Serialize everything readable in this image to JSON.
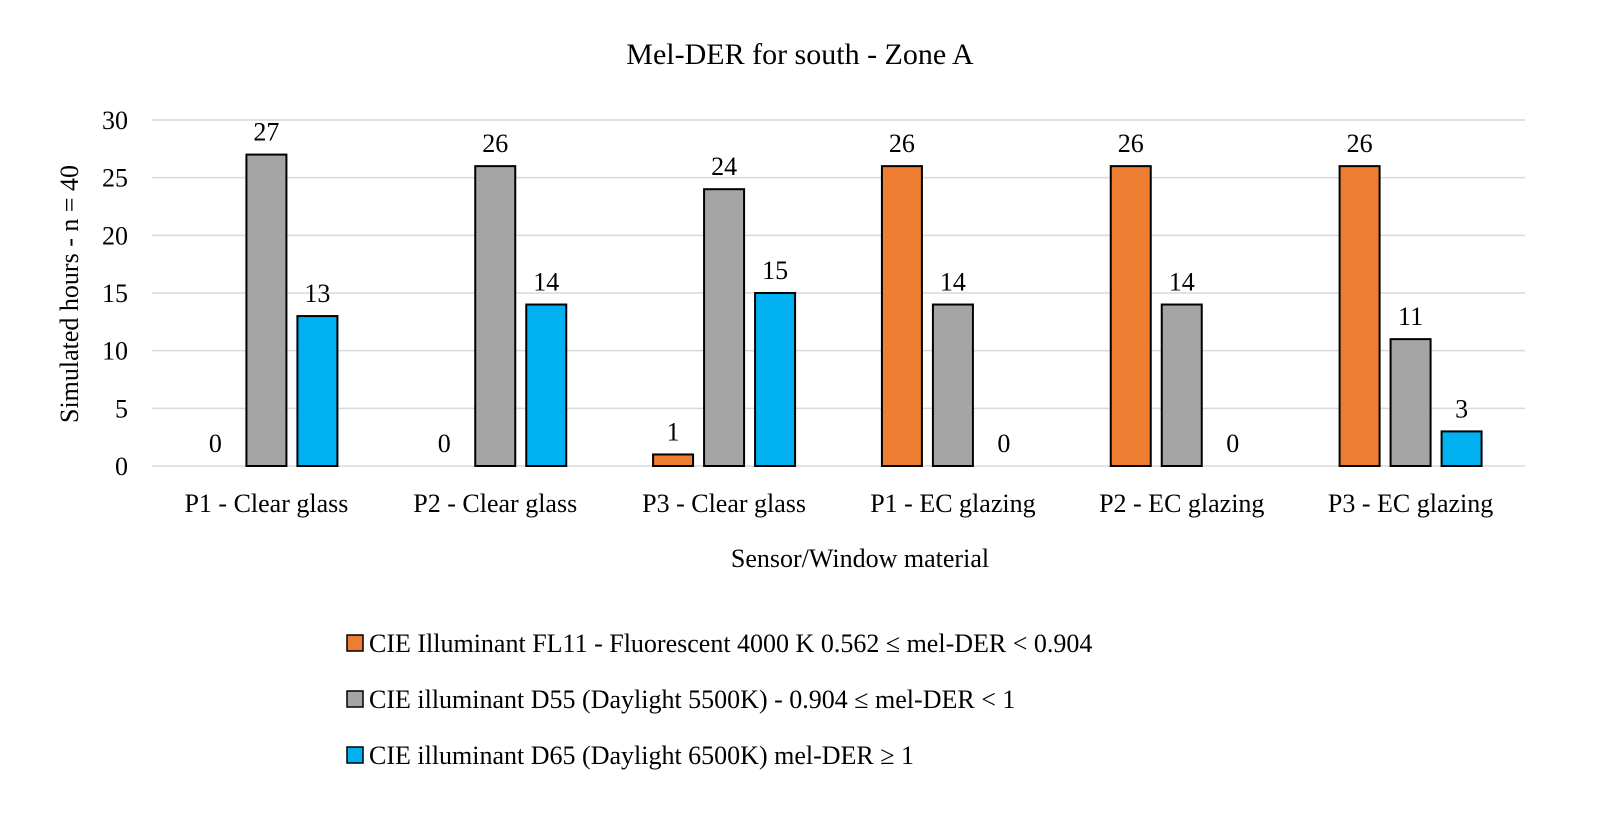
{
  "chart_data": {
    "type": "bar",
    "title": "Mel-DER for south - Zone A",
    "xlabel": "Sensor/Window material",
    "ylabel": "Simulated hours - n = 40",
    "ylim": [
      0,
      30
    ],
    "yticks": [
      "0",
      "5",
      "10",
      "15",
      "20",
      "25",
      "30"
    ],
    "grid": true,
    "legend_position": "bottom",
    "categories": [
      "P1 - Clear glass",
      "P2 - Clear glass",
      "P3 - Clear glass",
      "P1 - EC glazing",
      "P2 - EC glazing",
      "P3 - EC glazing"
    ],
    "series": [
      {
        "name": "CIE Illuminant FL11 - Fluorescent 4000 K 0.562 ≤ mel-DER  < 0.904",
        "color": "#ed7d31",
        "values": [
          0,
          0,
          1,
          26,
          26,
          26
        ]
      },
      {
        "name": "CIE illuminant D55 (Daylight 5500K) - 0.904 ≤ mel-DER  < 1",
        "color": "#a5a5a5",
        "values": [
          27,
          26,
          24,
          14,
          14,
          11
        ]
      },
      {
        "name": "CIE illuminant D65 (Daylight 6500K) mel-DER  ≥ 1",
        "color": "#00b0f0",
        "values": [
          13,
          14,
          15,
          0,
          0,
          3
        ]
      }
    ]
  }
}
